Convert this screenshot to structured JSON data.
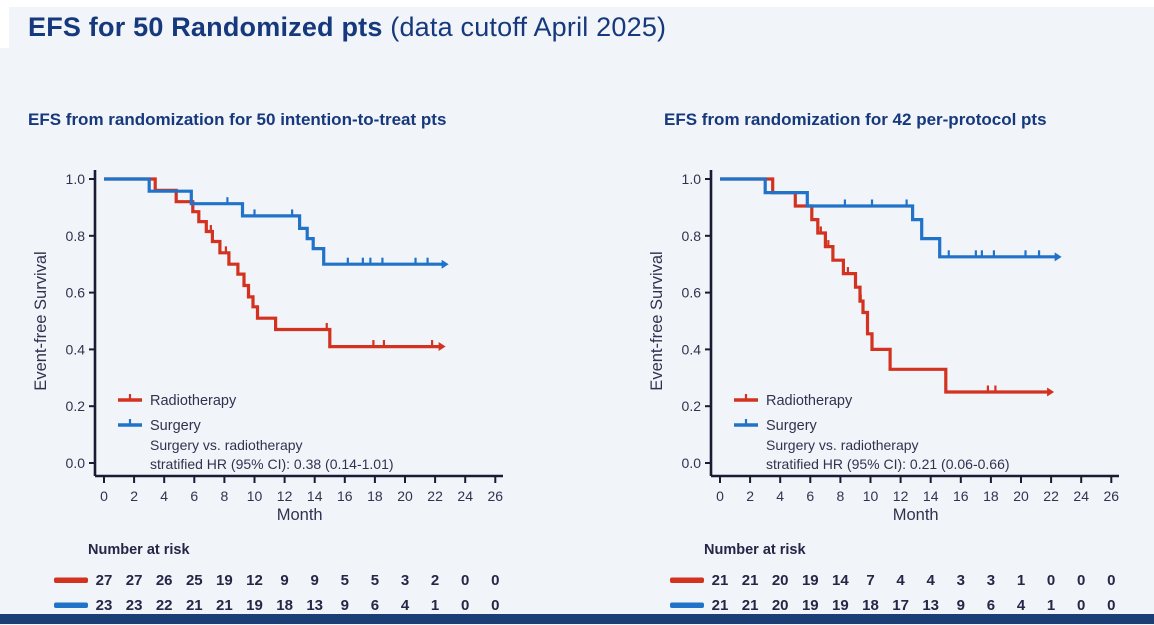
{
  "header": {
    "title_bold": "EFS for 50 Randomized pts",
    "title_paren": " (data cutoff April 2025)"
  },
  "colors": {
    "radiotherapy": "#d2321f",
    "surgery": "#2073c8",
    "title": "#16387c",
    "axis": "#1b1b33",
    "text": "#32324f",
    "numbers": "#262647",
    "bottom_bar": "#1c3e76",
    "background": "#f1f4f9"
  },
  "chart_data": [
    {
      "type": "line",
      "subtype": "kaplan-meier-step",
      "subtitle": "EFS from randomization for 50 intention-to-treat pts",
      "xlabel": "Month",
      "ylabel": "Event-free Survival",
      "xlim": [
        0,
        26
      ],
      "ylim": [
        0.0,
        1.0
      ],
      "xticks": [
        0,
        2,
        4,
        6,
        8,
        10,
        12,
        14,
        16,
        18,
        20,
        22,
        24,
        26
      ],
      "yticks": [
        0.0,
        0.2,
        0.4,
        0.6,
        0.8,
        1.0
      ],
      "grid": false,
      "legend_position": "lower-left",
      "annotation_line1": "Surgery vs. radiotherapy",
      "annotation_line2": "stratified HR (95% CI): 0.38 (0.14-1.01)",
      "series": [
        {
          "name": "Radiotherapy",
          "color_key": "radiotherapy",
          "steps": [
            [
              0,
              1.0
            ],
            [
              3.4,
              0.96
            ],
            [
              4.8,
              0.92
            ],
            [
              5.9,
              0.885
            ],
            [
              6.3,
              0.85
            ],
            [
              6.8,
              0.815
            ],
            [
              7.2,
              0.78
            ],
            [
              7.7,
              0.74
            ],
            [
              8.3,
              0.7
            ],
            [
              8.9,
              0.665
            ],
            [
              9.3,
              0.625
            ],
            [
              9.6,
              0.585
            ],
            [
              9.9,
              0.55
            ],
            [
              10.2,
              0.51
            ],
            [
              11.4,
              0.47
            ],
            [
              15.0,
              0.41
            ]
          ],
          "end": 22.3,
          "censors": [
            7.1,
            8.1,
            14.8,
            17.9,
            18.6,
            21.8
          ]
        },
        {
          "name": "Surgery",
          "color_key": "surgery",
          "steps": [
            [
              0,
              1.0
            ],
            [
              3.0,
              0.957
            ],
            [
              5.8,
              0.913
            ],
            [
              9.2,
              0.87
            ],
            [
              13.0,
              0.826
            ],
            [
              13.5,
              0.79
            ],
            [
              13.9,
              0.755
            ],
            [
              14.6,
              0.7
            ]
          ],
          "end": 22.5,
          "censors": [
            8.2,
            10.0,
            12.5,
            16.2,
            17.2,
            17.7,
            18.5,
            20.7,
            21.5
          ]
        }
      ],
      "risk_table": {
        "label": "Number at risk",
        "months": [
          0,
          2,
          4,
          6,
          8,
          10,
          12,
          14,
          16,
          18,
          20,
          22,
          24,
          26
        ],
        "rows": [
          {
            "name": "Radiotherapy",
            "color_key": "radiotherapy",
            "values": [
              27,
              27,
              26,
              25,
              19,
              12,
              9,
              9,
              5,
              5,
              3,
              2,
              0,
              0
            ]
          },
          {
            "name": "Surgery",
            "color_key": "surgery",
            "values": [
              23,
              23,
              22,
              21,
              21,
              19,
              18,
              13,
              9,
              6,
              4,
              1,
              0,
              0
            ]
          }
        ]
      }
    },
    {
      "type": "line",
      "subtype": "kaplan-meier-step",
      "subtitle": "EFS from randomization for 42 per-protocol pts",
      "xlabel": "Month",
      "ylabel": "Event-free Survival",
      "xlim": [
        0,
        26
      ],
      "ylim": [
        0.0,
        1.0
      ],
      "xticks": [
        0,
        2,
        4,
        6,
        8,
        10,
        12,
        14,
        16,
        18,
        20,
        22,
        24,
        26
      ],
      "yticks": [
        0.0,
        0.2,
        0.4,
        0.6,
        0.8,
        1.0
      ],
      "grid": false,
      "legend_position": "lower-left",
      "annotation_line1": "Surgery vs. radiotherapy",
      "annotation_line2": "stratified HR (95% CI): 0.21 (0.06-0.66)",
      "series": [
        {
          "name": "Radiotherapy",
          "color_key": "radiotherapy",
          "steps": [
            [
              0,
              1.0
            ],
            [
              3.5,
              0.952
            ],
            [
              5.0,
              0.905
            ],
            [
              6.1,
              0.857
            ],
            [
              6.5,
              0.81
            ],
            [
              7.0,
              0.762
            ],
            [
              7.5,
              0.714
            ],
            [
              8.2,
              0.667
            ],
            [
              9.0,
              0.619
            ],
            [
              9.3,
              0.57
            ],
            [
              9.5,
              0.53
            ],
            [
              9.8,
              0.455
            ],
            [
              10.1,
              0.4
            ],
            [
              11.3,
              0.33
            ],
            [
              15.0,
              0.25
            ]
          ],
          "end": 21.8,
          "censors": [
            6.7,
            7.2,
            8.5,
            9.35,
            17.8,
            18.3
          ]
        },
        {
          "name": "Surgery",
          "color_key": "surgery",
          "steps": [
            [
              0,
              1.0
            ],
            [
              3.0,
              0.952
            ],
            [
              5.8,
              0.905
            ],
            [
              12.8,
              0.857
            ],
            [
              13.4,
              0.79
            ],
            [
              14.6,
              0.726
            ]
          ],
          "end": 22.3,
          "censors": [
            8.3,
            10.1,
            12.4,
            15.2,
            17.0,
            17.4,
            18.2,
            20.3,
            21.2
          ]
        }
      ],
      "risk_table": {
        "label": "Number at risk",
        "months": [
          0,
          2,
          4,
          6,
          8,
          10,
          12,
          14,
          16,
          18,
          20,
          22,
          24,
          26
        ],
        "rows": [
          {
            "name": "Radiotherapy",
            "color_key": "radiotherapy",
            "values": [
              21,
              21,
              20,
              19,
              14,
              7,
              4,
              4,
              3,
              3,
              1,
              0,
              0,
              0
            ]
          },
          {
            "name": "Surgery",
            "color_key": "surgery",
            "values": [
              21,
              21,
              20,
              19,
              19,
              18,
              17,
              13,
              9,
              6,
              4,
              1,
              0,
              0
            ]
          }
        ]
      }
    }
  ]
}
